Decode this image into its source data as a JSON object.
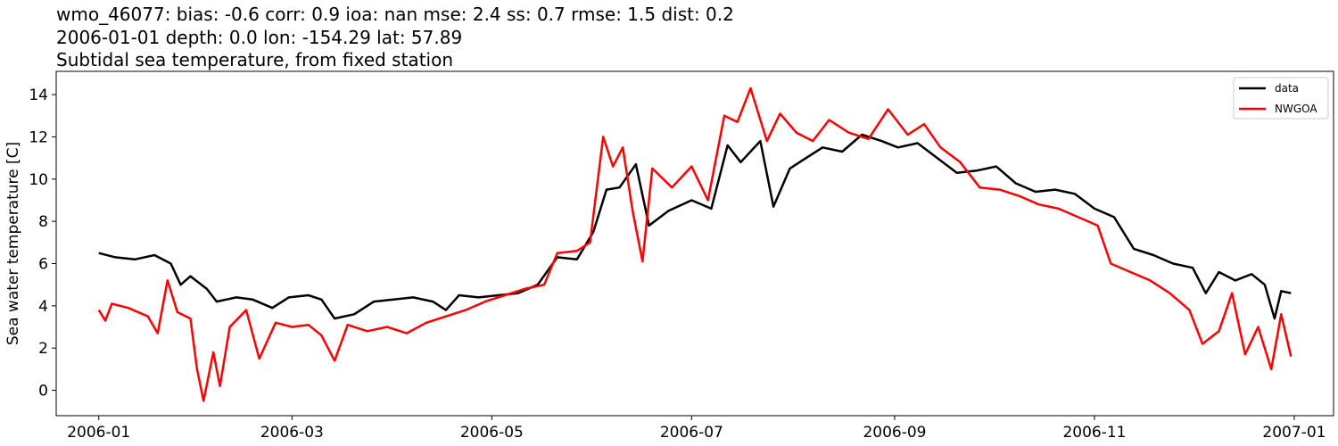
{
  "header": {
    "line1": "wmo_46077: bias: -0.6  corr: 0.9  ioa: nan  mse: 2.4  ss: 0.7  rmse: 1.5  dist: 0.2",
    "line2": "2006-01-01 depth: 0.0 lon: -154.29 lat: 57.89",
    "line3": "Subtidal sea temperature, from fixed station"
  },
  "chart_data": {
    "type": "line",
    "title": "wmo_46077: bias: -0.6  corr: 0.9  ioa: nan  mse: 2.4  ss: 0.7  rmse: 1.5  dist: 0.2 / 2006-01-01 depth: 0.0 lon: -154.29 lat: 57.89 / Subtidal sea temperature, from fixed station",
    "xlabel": "",
    "ylabel": "Sea water temperature [C]",
    "xlim": [
      "2005-12-19",
      "2007-01-13"
    ],
    "ylim": [
      -1.2,
      15.1
    ],
    "x_ticks": [
      "2006-01",
      "2006-03",
      "2006-05",
      "2006-07",
      "2006-09",
      "2006-11",
      "2007-01"
    ],
    "y_ticks": [
      0,
      2,
      4,
      6,
      8,
      10,
      12,
      14
    ],
    "grid": false,
    "legend_position": "upper right",
    "series": [
      {
        "name": "data",
        "color": "#000000",
        "points": [
          [
            "2006-01-01",
            6.5
          ],
          [
            "2006-01-06",
            6.3
          ],
          [
            "2006-01-12",
            6.2
          ],
          [
            "2006-01-18",
            6.4
          ],
          [
            "2006-01-23",
            6.0
          ],
          [
            "2006-01-26",
            5.0
          ],
          [
            "2006-01-29",
            5.4
          ],
          [
            "2006-02-03",
            4.8
          ],
          [
            "2006-02-06",
            4.2
          ],
          [
            "2006-02-12",
            4.4
          ],
          [
            "2006-02-17",
            4.3
          ],
          [
            "2006-02-23",
            3.9
          ],
          [
            "2006-02-28",
            4.4
          ],
          [
            "2006-03-06",
            4.5
          ],
          [
            "2006-03-10",
            4.3
          ],
          [
            "2006-03-14",
            3.4
          ],
          [
            "2006-03-20",
            3.6
          ],
          [
            "2006-03-26",
            4.2
          ],
          [
            "2006-04-01",
            4.3
          ],
          [
            "2006-04-07",
            4.4
          ],
          [
            "2006-04-13",
            4.2
          ],
          [
            "2006-04-17",
            3.8
          ],
          [
            "2006-04-21",
            4.5
          ],
          [
            "2006-04-27",
            4.4
          ],
          [
            "2006-05-03",
            4.5
          ],
          [
            "2006-05-09",
            4.6
          ],
          [
            "2006-05-15",
            5.0
          ],
          [
            "2006-05-21",
            6.3
          ],
          [
            "2006-05-27",
            6.2
          ],
          [
            "2006-06-01",
            7.5
          ],
          [
            "2006-06-05",
            9.5
          ],
          [
            "2006-06-09",
            9.6
          ],
          [
            "2006-06-14",
            10.7
          ],
          [
            "2006-06-18",
            7.8
          ],
          [
            "2006-06-24",
            8.5
          ],
          [
            "2006-07-01",
            9.0
          ],
          [
            "2006-07-07",
            8.6
          ],
          [
            "2006-07-12",
            11.6
          ],
          [
            "2006-07-16",
            10.8
          ],
          [
            "2006-07-22",
            11.8
          ],
          [
            "2006-07-26",
            8.7
          ],
          [
            "2006-07-31",
            10.5
          ],
          [
            "2006-08-05",
            11.0
          ],
          [
            "2006-08-10",
            11.5
          ],
          [
            "2006-08-16",
            11.3
          ],
          [
            "2006-08-22",
            12.1
          ],
          [
            "2006-08-28",
            11.8
          ],
          [
            "2006-09-02",
            11.5
          ],
          [
            "2006-09-08",
            11.7
          ],
          [
            "2006-09-14",
            11.0
          ],
          [
            "2006-09-20",
            10.3
          ],
          [
            "2006-09-26",
            10.4
          ],
          [
            "2006-10-02",
            10.6
          ],
          [
            "2006-10-08",
            9.8
          ],
          [
            "2006-10-14",
            9.4
          ],
          [
            "2006-10-20",
            9.5
          ],
          [
            "2006-10-26",
            9.3
          ],
          [
            "2006-11-01",
            8.6
          ],
          [
            "2006-11-07",
            8.2
          ],
          [
            "2006-11-13",
            6.7
          ],
          [
            "2006-11-19",
            6.4
          ],
          [
            "2006-11-25",
            6.0
          ],
          [
            "2006-12-01",
            5.8
          ],
          [
            "2006-12-05",
            4.6
          ],
          [
            "2006-12-09",
            5.6
          ],
          [
            "2006-12-14",
            5.2
          ],
          [
            "2006-12-19",
            5.5
          ],
          [
            "2006-12-23",
            5.0
          ],
          [
            "2006-12-26",
            3.4
          ],
          [
            "2006-12-28",
            4.7
          ],
          [
            "2006-12-31",
            4.6
          ]
        ]
      },
      {
        "name": "NWGOA",
        "color": "#ff0000",
        "points": [
          [
            "2006-01-01",
            3.8
          ],
          [
            "2006-01-03",
            3.3
          ],
          [
            "2006-01-05",
            4.1
          ],
          [
            "2006-01-10",
            3.9
          ],
          [
            "2006-01-16",
            3.5
          ],
          [
            "2006-01-19",
            2.7
          ],
          [
            "2006-01-22",
            5.2
          ],
          [
            "2006-01-25",
            3.7
          ],
          [
            "2006-01-29",
            3.4
          ],
          [
            "2006-01-31",
            1.0
          ],
          [
            "2006-02-02",
            -0.5
          ],
          [
            "2006-02-05",
            1.8
          ],
          [
            "2006-02-07",
            0.2
          ],
          [
            "2006-02-10",
            3.0
          ],
          [
            "2006-02-15",
            3.8
          ],
          [
            "2006-02-19",
            1.5
          ],
          [
            "2006-02-24",
            3.2
          ],
          [
            "2006-03-01",
            3.0
          ],
          [
            "2006-03-06",
            3.1
          ],
          [
            "2006-03-10",
            2.6
          ],
          [
            "2006-03-14",
            1.4
          ],
          [
            "2006-03-18",
            3.1
          ],
          [
            "2006-03-24",
            2.8
          ],
          [
            "2006-03-30",
            3.0
          ],
          [
            "2006-04-05",
            2.7
          ],
          [
            "2006-04-11",
            3.2
          ],
          [
            "2006-04-17",
            3.5
          ],
          [
            "2006-04-23",
            3.8
          ],
          [
            "2006-04-29",
            4.2
          ],
          [
            "2006-05-05",
            4.5
          ],
          [
            "2006-05-11",
            4.8
          ],
          [
            "2006-05-17",
            5.0
          ],
          [
            "2006-05-21",
            6.5
          ],
          [
            "2006-05-27",
            6.6
          ],
          [
            "2006-05-31",
            7.0
          ],
          [
            "2006-06-04",
            12.0
          ],
          [
            "2006-06-07",
            10.6
          ],
          [
            "2006-06-10",
            11.5
          ],
          [
            "2006-06-13",
            8.5
          ],
          [
            "2006-06-16",
            6.1
          ],
          [
            "2006-06-19",
            10.5
          ],
          [
            "2006-06-25",
            9.6
          ],
          [
            "2006-07-01",
            10.6
          ],
          [
            "2006-07-06",
            9.0
          ],
          [
            "2006-07-11",
            13.0
          ],
          [
            "2006-07-15",
            12.7
          ],
          [
            "2006-07-19",
            14.3
          ],
          [
            "2006-07-24",
            11.8
          ],
          [
            "2006-07-28",
            13.1
          ],
          [
            "2006-08-02",
            12.2
          ],
          [
            "2006-08-07",
            11.8
          ],
          [
            "2006-08-12",
            12.8
          ],
          [
            "2006-08-18",
            12.2
          ],
          [
            "2006-08-24",
            11.9
          ],
          [
            "2006-08-30",
            13.3
          ],
          [
            "2006-09-05",
            12.1
          ],
          [
            "2006-09-10",
            12.6
          ],
          [
            "2006-09-15",
            11.5
          ],
          [
            "2006-09-21",
            10.8
          ],
          [
            "2006-09-27",
            9.6
          ],
          [
            "2006-10-03",
            9.5
          ],
          [
            "2006-10-09",
            9.2
          ],
          [
            "2006-10-15",
            8.8
          ],
          [
            "2006-10-21",
            8.6
          ],
          [
            "2006-10-27",
            8.2
          ],
          [
            "2006-11-02",
            7.8
          ],
          [
            "2006-11-06",
            6.0
          ],
          [
            "2006-11-12",
            5.6
          ],
          [
            "2006-11-18",
            5.2
          ],
          [
            "2006-11-24",
            4.6
          ],
          [
            "2006-11-30",
            3.8
          ],
          [
            "2006-12-04",
            2.2
          ],
          [
            "2006-12-09",
            2.8
          ],
          [
            "2006-12-13",
            4.6
          ],
          [
            "2006-12-17",
            1.7
          ],
          [
            "2006-12-21",
            3.0
          ],
          [
            "2006-12-25",
            1.0
          ],
          [
            "2006-12-28",
            3.6
          ],
          [
            "2006-12-31",
            1.6
          ]
        ]
      }
    ]
  }
}
